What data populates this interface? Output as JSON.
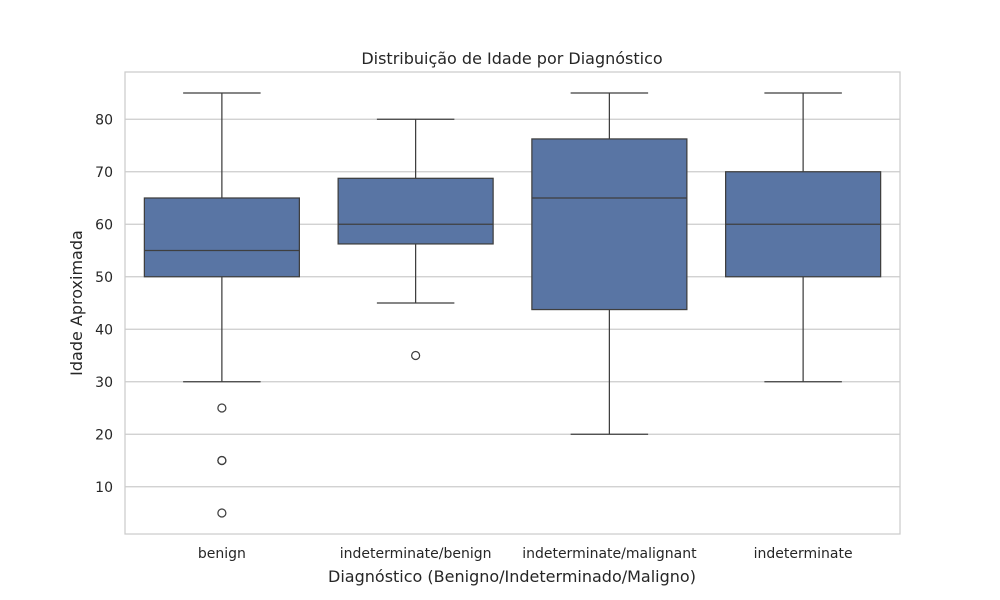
{
  "chart_data": {
    "type": "box",
    "title": "Distribuição de Idade por Diagnóstico",
    "xlabel": "Diagnóstico (Benigno/Indeterminado/Maligno)",
    "ylabel": "Idade Aproximada",
    "ylim": [
      1,
      89
    ],
    "yticks": [
      10,
      20,
      30,
      40,
      50,
      60,
      70,
      80
    ],
    "grid": "horizontal",
    "colors": {
      "box": "#5975a4",
      "line": "#3f3f3f",
      "grid": "#cccccc",
      "frame": "#cccccc"
    },
    "categories": [
      "benign",
      "indeterminate/benign",
      "indeterminate/malignant",
      "indeterminate"
    ],
    "boxes": [
      {
        "whisker_low": 30,
        "q1": 50,
        "median": 55,
        "q3": 65,
        "whisker_high": 85,
        "outliers": [
          25,
          15,
          15,
          5
        ]
      },
      {
        "whisker_low": 45,
        "q1": 56.25,
        "median": 60,
        "q3": 68.75,
        "whisker_high": 80,
        "outliers": [
          35
        ]
      },
      {
        "whisker_low": 20,
        "q1": 43.75,
        "median": 65,
        "q3": 76.25,
        "whisker_high": 85,
        "outliers": []
      },
      {
        "whisker_low": 30,
        "q1": 50,
        "median": 60,
        "q3": 70,
        "whisker_high": 85,
        "outliers": []
      }
    ]
  }
}
